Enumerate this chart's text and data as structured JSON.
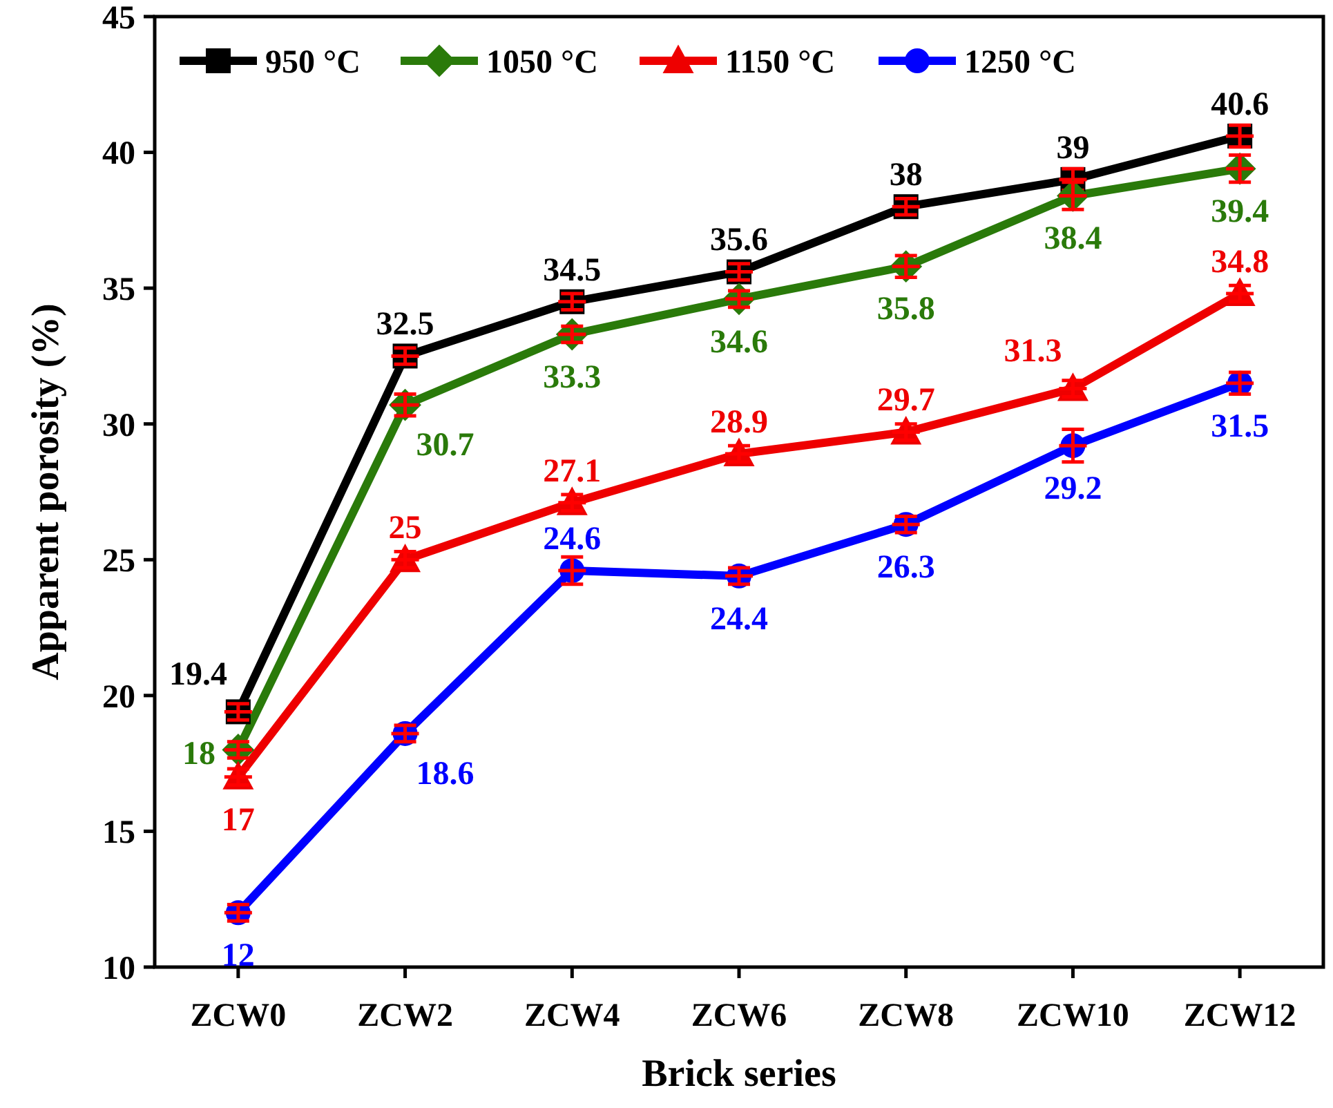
{
  "chart_data": {
    "type": "line",
    "xlabel": "Brick series",
    "ylabel": "Apparent porosity (%)",
    "categories": [
      "ZCW0",
      "ZCW2",
      "ZCW4",
      "ZCW6",
      "ZCW8",
      "ZCW10",
      "ZCW12"
    ],
    "ylim": [
      10,
      45
    ],
    "yticks": [
      10,
      15,
      20,
      25,
      30,
      35,
      40,
      45
    ],
    "grid": false,
    "legend": "top",
    "data_labels": true,
    "series": [
      {
        "name": "950 °C",
        "color": "#000000",
        "marker": "square",
        "values": [
          19.4,
          32.5,
          34.5,
          35.6,
          38,
          39,
          40.6
        ],
        "errors": [
          0.3,
          0.3,
          0.3,
          0.3,
          0.3,
          0.4,
          0.4
        ]
      },
      {
        "name": "1050 °C",
        "color": "#2a7a0a",
        "marker": "diamond",
        "values": [
          18,
          30.7,
          33.3,
          34.6,
          35.8,
          38.4,
          39.4
        ],
        "errors": [
          0.3,
          0.4,
          0.3,
          0.3,
          0.4,
          0.5,
          0.5
        ]
      },
      {
        "name": "1150 °C",
        "color": "#ee0000",
        "marker": "triangle",
        "values": [
          17,
          25,
          27.1,
          28.9,
          29.7,
          31.3,
          34.8
        ],
        "errors": [
          0.3,
          0.3,
          0.3,
          0.3,
          0.3,
          0.3,
          0.3
        ]
      },
      {
        "name": "1250 °C",
        "color": "#0000ff",
        "marker": "circle",
        "values": [
          12,
          18.6,
          24.6,
          24.4,
          26.3,
          29.2,
          31.5
        ],
        "errors": [
          0.3,
          0.3,
          0.5,
          0.3,
          0.3,
          0.6,
          0.4
        ]
      }
    ]
  }
}
